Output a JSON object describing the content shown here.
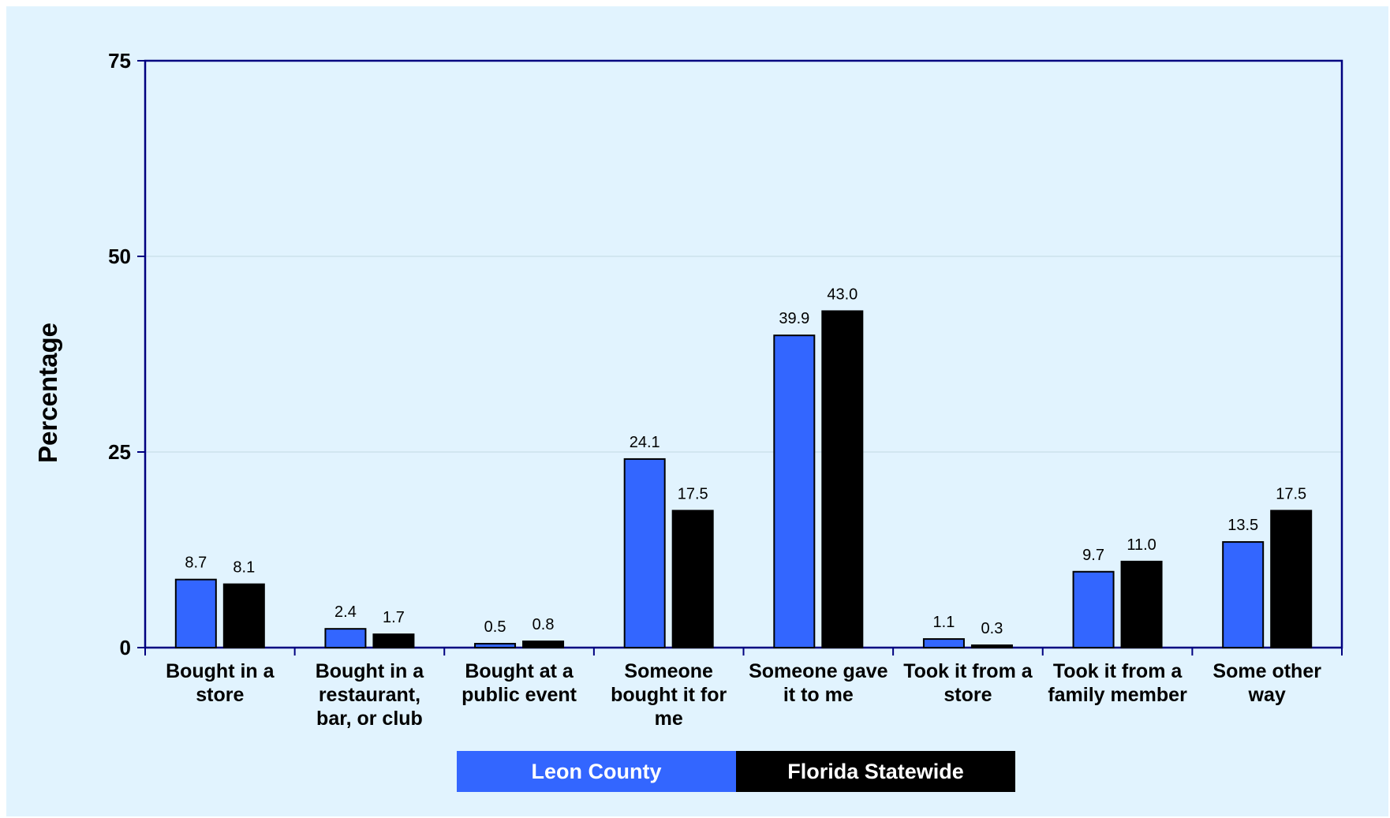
{
  "chart_data": {
    "type": "bar",
    "ylabel": "Percentage",
    "xlabel": "",
    "title": "",
    "ylim": [
      0,
      75
    ],
    "yticks": [
      0,
      25,
      50,
      75
    ],
    "grid": true,
    "legend_position": "bottom-center",
    "categories": [
      [
        "Bought in a",
        "store"
      ],
      [
        "Bought in a",
        "restaurant,",
        "bar, or club"
      ],
      [
        "Bought at a",
        "public event"
      ],
      [
        "Someone",
        "bought it for",
        "me"
      ],
      [
        "Someone gave",
        "it to me"
      ],
      [
        "Took it from a",
        "store"
      ],
      [
        "Took it from a",
        "family member"
      ],
      [
        "Some other",
        "way"
      ]
    ],
    "series": [
      {
        "name": "Leon County",
        "color": "#3366ff",
        "values": [
          8.7,
          2.4,
          0.5,
          24.1,
          39.9,
          1.1,
          9.7,
          13.5
        ],
        "labels": [
          "8.7",
          "2.4",
          "0.5",
          "24.1",
          "39.9",
          "1.1",
          "9.7",
          "13.5"
        ]
      },
      {
        "name": "Florida Statewide",
        "color": "#000000",
        "values": [
          8.1,
          1.7,
          0.8,
          17.5,
          43.0,
          0.3,
          11.0,
          17.5
        ],
        "labels": [
          "8.1",
          "1.7",
          "0.8",
          "17.5",
          "43.0",
          "0.3",
          "11.0",
          "17.5"
        ]
      }
    ]
  },
  "colors": {
    "background": "#e1f3fe",
    "axis": "#000080",
    "gridline": "#c8dde8"
  }
}
